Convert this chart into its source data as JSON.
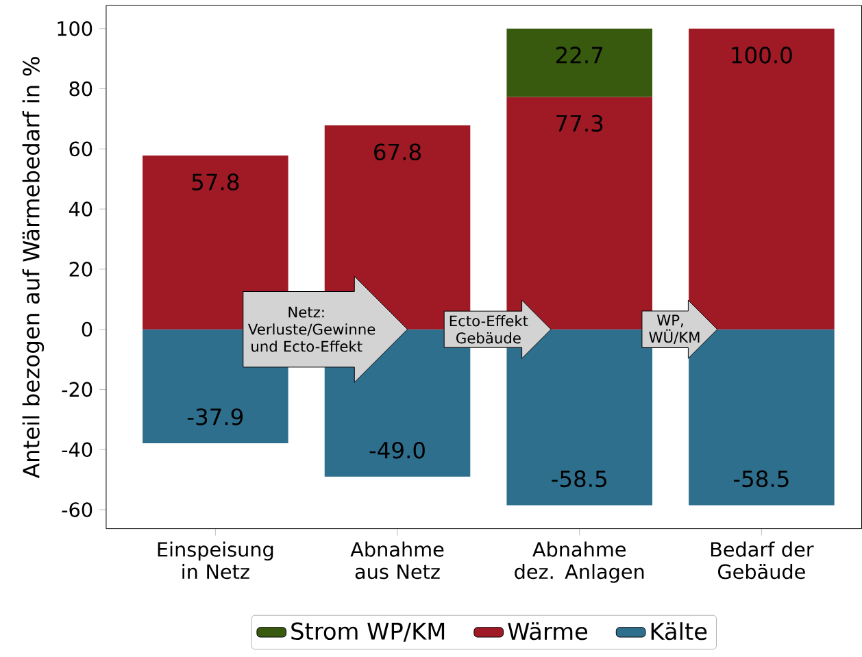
{
  "chart_data": {
    "type": "bar",
    "stacked": true,
    "ylabel": "Anteil bezogen auf Wärmebedarf in %",
    "categories": [
      "Einspeisung in Netz",
      "Abnahme aus Netz",
      "Abnahme dez. Anlagen",
      "Bedarf der Gebäude"
    ],
    "series": [
      {
        "name": "Kälte",
        "color": "#2e6f8e",
        "values": [
          -37.9,
          -49.0,
          -58.5,
          -58.5
        ],
        "value_labels": [
          "-37.9",
          "-49.0",
          "-58.5",
          "-58.5"
        ]
      },
      {
        "name": "Wärme",
        "color": "#a01a25",
        "values": [
          57.8,
          67.8,
          77.3,
          100.0
        ],
        "value_labels": [
          "57.8",
          "67.8",
          "77.3",
          "100.0"
        ]
      },
      {
        "name": "Strom WP/KM",
        "color": "#375a0f",
        "values": [
          null,
          null,
          22.7,
          null
        ],
        "value_labels": [
          null,
          null,
          "22.7",
          null
        ]
      }
    ],
    "ylim": [
      -66.3,
      107.7
    ],
    "yticks": [
      -60,
      -40,
      -20,
      0,
      20,
      40,
      60,
      80,
      100
    ],
    "legend": "bottom",
    "grid": false,
    "annotations": [
      {
        "text": "Netz: Verluste/Gewinne und Ecto-Effekt",
        "x": "Abnahme aus Netz",
        "y": 0
      },
      "Ecto-Effekt Gebäude",
      "WP, WÜ/KM"
    ]
  }
}
